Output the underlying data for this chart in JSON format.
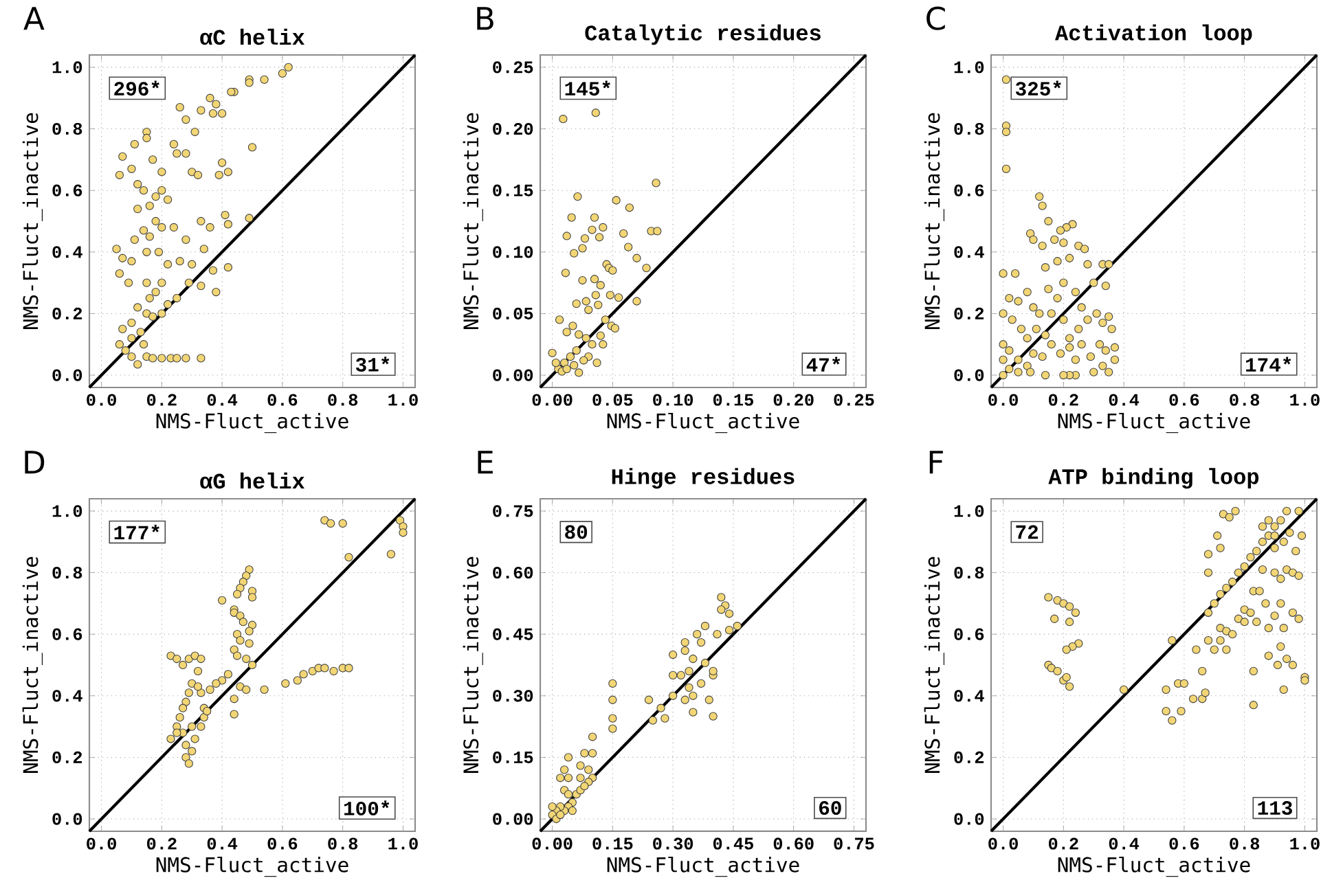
{
  "chart_data": [
    {
      "type": "scatter",
      "title": "αC helix",
      "xlabel": "NMS-Fluct_active",
      "ylabel": "NMS-Fluct_inactive",
      "annotations": [
        "A",
        "296*",
        "31*"
      ],
      "xlim": [
        -0.04,
        1.04
      ],
      "ylim": [
        -0.04,
        1.04
      ],
      "xticks": [
        {
          "value": 0,
          "label": "0.0"
        },
        {
          "value": 0.2,
          "label": "0.2"
        },
        {
          "value": 0.4,
          "label": "0.4"
        },
        {
          "value": 0.6,
          "label": "0.6"
        },
        {
          "value": 0.8,
          "label": "0.8"
        },
        {
          "value": 1.0,
          "label": "1.0"
        }
      ],
      "yticks": [
        {
          "value": 0,
          "label": "0.0"
        },
        {
          "value": 0.2,
          "label": "0.2"
        },
        {
          "value": 0.4,
          "label": "0.4"
        },
        {
          "value": 0.6,
          "label": "0.6"
        },
        {
          "value": 0.8,
          "label": "0.8"
        },
        {
          "value": 1.0,
          "label": "1.0"
        }
      ],
      "grid": true,
      "marker": "circle",
      "series": [
        {
          "color": "#f2d675",
          "x": [
            0.62,
            0.6,
            0.54,
            0.49,
            0.49,
            0.44,
            0.43,
            0.36,
            0.38,
            0.4,
            0.37,
            0.33,
            0.26,
            0.28,
            0.31,
            0.24,
            0.15,
            0.15,
            0.11,
            0.07,
            0.06,
            0.17,
            0.2,
            0.25,
            0.28,
            0.3,
            0.32,
            0.4,
            0.42,
            0.39,
            0.5,
            0.1,
            0.12,
            0.14,
            0.18,
            0.16,
            0.2,
            0.22,
            0.18,
            0.14,
            0.12,
            0.16,
            0.2,
            0.24,
            0.28,
            0.33,
            0.36,
            0.41,
            0.42,
            0.49,
            0.05,
            0.07,
            0.1,
            0.06,
            0.09,
            0.11,
            0.15,
            0.19,
            0.22,
            0.26,
            0.3,
            0.34,
            0.38,
            0.42,
            0.37,
            0.15,
            0.2,
            0.25,
            0.29,
            0.33,
            0.12,
            0.15,
            0.17,
            0.2,
            0.22,
            0.1,
            0.07,
            0.06,
            0.08,
            0.1,
            0.13,
            0.14,
            0.1,
            0.12,
            0.15,
            0.17,
            0.2,
            0.23,
            0.25,
            0.28,
            0.33,
            0.16,
            0.18
          ],
          "values": [
            1.0,
            0.98,
            0.96,
            0.96,
            0.95,
            0.92,
            0.92,
            0.9,
            0.88,
            0.85,
            0.85,
            0.86,
            0.87,
            0.83,
            0.79,
            0.75,
            0.79,
            0.77,
            0.75,
            0.71,
            0.65,
            0.7,
            0.66,
            0.72,
            0.72,
            0.66,
            0.65,
            0.69,
            0.66,
            0.65,
            0.74,
            0.67,
            0.62,
            0.6,
            0.58,
            0.55,
            0.6,
            0.57,
            0.5,
            0.47,
            0.54,
            0.45,
            0.48,
            0.48,
            0.44,
            0.5,
            0.48,
            0.52,
            0.49,
            0.51,
            0.41,
            0.38,
            0.37,
            0.33,
            0.3,
            0.44,
            0.4,
            0.4,
            0.36,
            0.37,
            0.36,
            0.41,
            0.27,
            0.35,
            0.34,
            0.3,
            0.3,
            0.25,
            0.3,
            0.29,
            0.22,
            0.2,
            0.19,
            0.2,
            0.23,
            0.17,
            0.15,
            0.1,
            0.08,
            0.12,
            0.14,
            0.1,
            0.06,
            0.035,
            0.06,
            0.055,
            0.055,
            0.055,
            0.055,
            0.055,
            0.055,
            0.25,
            0.27
          ]
        },
        {
          "type": "line",
          "color": "#000000",
          "marker": "none",
          "x": [
            -0.04,
            1.04
          ],
          "values": [
            -0.04,
            1.04
          ]
        }
      ]
    },
    {
      "type": "scatter",
      "title": "Catalytic residues",
      "xlabel": "NMS-Fluct_active",
      "ylabel": "NMS-Fluct_inactive",
      "annotations": [
        "B",
        "145*",
        "47*"
      ],
      "xlim": [
        -0.01,
        0.26
      ],
      "ylim": [
        -0.01,
        0.26
      ],
      "xticks": [
        {
          "value": 0,
          "label": "0.00"
        },
        {
          "value": 0.05,
          "label": "0.05"
        },
        {
          "value": 0.1,
          "label": "0.10"
        },
        {
          "value": 0.15,
          "label": "0.15"
        },
        {
          "value": 0.2,
          "label": "0.20"
        },
        {
          "value": 0.25,
          "label": "0.25"
        }
      ],
      "yticks": [
        {
          "value": 0,
          "label": "0.00"
        },
        {
          "value": 0.05,
          "label": "0.05"
        },
        {
          "value": 0.1,
          "label": "0.10"
        },
        {
          "value": 0.15,
          "label": "0.15"
        },
        {
          "value": 0.2,
          "label": "0.20"
        },
        {
          "value": 0.25,
          "label": "0.25"
        }
      ],
      "grid": true,
      "marker": "circle",
      "series": [
        {
          "color": "#f2d675",
          "x": [
            0.009,
            0.036,
            0.086,
            0.021,
            0.053,
            0.064,
            0.016,
            0.035,
            0.012,
            0.027,
            0.039,
            0.033,
            0.042,
            0.059,
            0.082,
            0.087,
            0.018,
            0.025,
            0.045,
            0.047,
            0.063,
            0.07,
            0.078,
            0.011,
            0.025,
            0.035,
            0.04,
            0.048,
            0.05,
            0.055,
            0.07,
            0.02,
            0.03,
            0.038,
            0.044,
            0.006,
            0.012,
            0.017,
            0.022,
            0.028,
            0.033,
            0.04,
            0.049,
            0.052,
            0.03,
            0.037,
            0.026,
            0.02,
            0.015,
            0.01,
            0.005,
            0.0,
            0.003,
            0.008,
            0.012,
            0.022,
            0.018,
            0.042,
            0.036,
            0.028
          ],
          "values": [
            0.208,
            0.213,
            0.156,
            0.145,
            0.142,
            0.136,
            0.128,
            0.128,
            0.113,
            0.111,
            0.112,
            0.118,
            0.12,
            0.115,
            0.117,
            0.117,
            0.099,
            0.103,
            0.09,
            0.087,
            0.104,
            0.095,
            0.087,
            0.083,
            0.077,
            0.078,
            0.073,
            0.065,
            0.085,
            0.063,
            0.06,
            0.058,
            0.053,
            0.057,
            0.045,
            0.045,
            0.035,
            0.04,
            0.033,
            0.03,
            0.025,
            0.032,
            0.04,
            0.038,
            0.015,
            0.01,
            0.012,
            0.02,
            0.015,
            0.01,
            0.005,
            0.018,
            0.01,
            0.003,
            0.005,
            0.002,
            0.008,
            0.025,
            0.065,
            0.06
          ]
        },
        {
          "type": "line",
          "color": "#000000",
          "marker": "none",
          "x": [
            -0.01,
            0.26
          ],
          "values": [
            -0.01,
            0.26
          ]
        }
      ]
    },
    {
      "type": "scatter",
      "title": "Activation loop",
      "xlabel": "NMS-Fluct_active",
      "ylabel": "NMS-Fluct_inactive",
      "annotations": [
        "C",
        "325*",
        "174*"
      ],
      "xlim": [
        -0.04,
        1.04
      ],
      "ylim": [
        -0.04,
        1.04
      ],
      "xticks": [
        {
          "value": 0,
          "label": "0.0"
        },
        {
          "value": 0.2,
          "label": "0.2"
        },
        {
          "value": 0.4,
          "label": "0.4"
        },
        {
          "value": 0.6,
          "label": "0.6"
        },
        {
          "value": 0.8,
          "label": "0.8"
        },
        {
          "value": 1.0,
          "label": "1.0"
        }
      ],
      "yticks": [
        {
          "value": 0,
          "label": "0.0"
        },
        {
          "value": 0.2,
          "label": "0.2"
        },
        {
          "value": 0.4,
          "label": "0.4"
        },
        {
          "value": 0.6,
          "label": "0.6"
        },
        {
          "value": 0.8,
          "label": "0.8"
        },
        {
          "value": 1.0,
          "label": "1.0"
        }
      ],
      "grid": true,
      "marker": "circle",
      "series": [
        {
          "color": "#f2d675",
          "x": [
            0.01,
            0.01,
            0.01,
            0.01,
            0.12,
            0.13,
            0.15,
            0.23,
            0.21,
            0.19,
            0.09,
            0.1,
            0.13,
            0.17,
            0.2,
            0.25,
            0.27,
            0.0,
            0.04,
            0.14,
            0.18,
            0.22,
            0.28,
            0.33,
            0.35,
            0.02,
            0.05,
            0.08,
            0.1,
            0.12,
            0.15,
            0.18,
            0.2,
            0.24,
            0.26,
            0.3,
            0.34,
            0.0,
            0.03,
            0.06,
            0.08,
            0.11,
            0.14,
            0.16,
            0.2,
            0.22,
            0.25,
            0.28,
            0.31,
            0.33,
            0.35,
            0.36,
            0.0,
            0.02,
            0.05,
            0.08,
            0.1,
            0.13,
            0.16,
            0.19,
            0.22,
            0.26,
            0.29,
            0.32,
            0.34,
            0.37,
            0.37,
            0.33,
            0.35,
            0.3,
            0.24,
            0.22,
            0.2,
            0.14,
            0.09,
            0.05,
            0.0,
            0.0,
            0.02,
            0.24
          ],
          "values": [
            0.96,
            0.81,
            0.79,
            0.67,
            0.58,
            0.55,
            0.5,
            0.49,
            0.48,
            0.47,
            0.46,
            0.44,
            0.42,
            0.44,
            0.43,
            0.42,
            0.41,
            0.33,
            0.33,
            0.35,
            0.37,
            0.38,
            0.36,
            0.36,
            0.36,
            0.25,
            0.24,
            0.27,
            0.22,
            0.2,
            0.28,
            0.25,
            0.3,
            0.27,
            0.22,
            0.3,
            0.29,
            0.2,
            0.18,
            0.15,
            0.12,
            0.15,
            0.13,
            0.2,
            0.18,
            0.12,
            0.15,
            0.18,
            0.2,
            0.17,
            0.19,
            0.15,
            0.1,
            0.08,
            0.05,
            0.03,
            0.07,
            0.06,
            0.1,
            0.07,
            0.09,
            0.1,
            0.06,
            0.1,
            0.08,
            0.09,
            0.05,
            0.03,
            0.01,
            0.01,
            0.0,
            0.0,
            0.0,
            0.0,
            0.01,
            0.01,
            0.0,
            0.05,
            0.02,
            0.05
          ]
        },
        {
          "type": "line",
          "color": "#000000",
          "marker": "none",
          "x": [
            -0.04,
            1.04
          ],
          "values": [
            -0.04,
            1.04
          ]
        }
      ]
    },
    {
      "type": "scatter",
      "title": "αG helix",
      "xlabel": "NMS-Fluct_active",
      "ylabel": "NMS-Fluct_inactive",
      "annotations": [
        "D",
        "177*",
        "100*"
      ],
      "xlim": [
        -0.04,
        1.04
      ],
      "ylim": [
        -0.04,
        1.04
      ],
      "xticks": [
        {
          "value": 0,
          "label": "0.0"
        },
        {
          "value": 0.2,
          "label": "0.2"
        },
        {
          "value": 0.4,
          "label": "0.4"
        },
        {
          "value": 0.6,
          "label": "0.6"
        },
        {
          "value": 0.8,
          "label": "0.8"
        },
        {
          "value": 1.0,
          "label": "1.0"
        }
      ],
      "yticks": [
        {
          "value": 0,
          "label": "0.0"
        },
        {
          "value": 0.2,
          "label": "0.2"
        },
        {
          "value": 0.4,
          "label": "0.4"
        },
        {
          "value": 0.6,
          "label": "0.6"
        },
        {
          "value": 0.8,
          "label": "0.8"
        },
        {
          "value": 1.0,
          "label": "1.0"
        }
      ],
      "grid": true,
      "marker": "circle",
      "series": [
        {
          "color": "#f2d675",
          "x": [
            0.74,
            0.76,
            0.8,
            0.99,
            1.0,
            1.0,
            0.96,
            0.82,
            0.49,
            0.48,
            0.47,
            0.46,
            0.45,
            0.5,
            0.5,
            0.4,
            0.44,
            0.44,
            0.46,
            0.47,
            0.5,
            0.49,
            0.45,
            0.46,
            0.49,
            0.44,
            0.45,
            0.48,
            0.42,
            0.4,
            0.38,
            0.36,
            0.44,
            0.44,
            0.46,
            0.48,
            0.5,
            0.54,
            0.61,
            0.65,
            0.67,
            0.7,
            0.72,
            0.74,
            0.77,
            0.8,
            0.82,
            0.23,
            0.25,
            0.27,
            0.29,
            0.31,
            0.33,
            0.32,
            0.3,
            0.29,
            0.28,
            0.27,
            0.26,
            0.25,
            0.23,
            0.27,
            0.28,
            0.28,
            0.29,
            0.3,
            0.31,
            0.33,
            0.34,
            0.34,
            0.33,
            0.35,
            0.3,
            0.32,
            0.25
          ],
          "values": [
            0.97,
            0.96,
            0.96,
            0.97,
            0.95,
            0.93,
            0.86,
            0.85,
            0.81,
            0.79,
            0.77,
            0.75,
            0.73,
            0.74,
            0.72,
            0.71,
            0.68,
            0.67,
            0.66,
            0.64,
            0.63,
            0.61,
            0.6,
            0.58,
            0.57,
            0.55,
            0.53,
            0.52,
            0.47,
            0.45,
            0.44,
            0.42,
            0.39,
            0.34,
            0.43,
            0.42,
            0.5,
            0.42,
            0.44,
            0.45,
            0.47,
            0.48,
            0.49,
            0.49,
            0.48,
            0.49,
            0.49,
            0.53,
            0.52,
            0.5,
            0.52,
            0.53,
            0.52,
            0.48,
            0.44,
            0.41,
            0.38,
            0.36,
            0.33,
            0.3,
            0.26,
            0.28,
            0.24,
            0.2,
            0.18,
            0.22,
            0.26,
            0.3,
            0.33,
            0.36,
            0.41,
            0.35,
            0.3,
            0.43,
            0.28
          ]
        },
        {
          "type": "line",
          "color": "#000000",
          "marker": "none",
          "x": [
            -0.04,
            1.04
          ],
          "values": [
            -0.04,
            1.04
          ]
        }
      ]
    },
    {
      "type": "scatter",
      "title": "Hinge residues",
      "xlabel": "NMS-Fluct_active",
      "ylabel": "NMS-Fluct_inactive",
      "annotations": [
        "E",
        "80",
        "60"
      ],
      "xlim": [
        -0.03,
        0.78
      ],
      "ylim": [
        -0.03,
        0.78
      ],
      "xticks": [
        {
          "value": 0,
          "label": "0.00"
        },
        {
          "value": 0.15,
          "label": "0.15"
        },
        {
          "value": 0.3,
          "label": "0.30"
        },
        {
          "value": 0.45,
          "label": "0.45"
        },
        {
          "value": 0.6,
          "label": "0.60"
        },
        {
          "value": 0.75,
          "label": "0.75"
        }
      ],
      "yticks": [
        {
          "value": 0,
          "label": "0.00"
        },
        {
          "value": 0.15,
          "label": "0.15"
        },
        {
          "value": 0.3,
          "label": "0.30"
        },
        {
          "value": 0.45,
          "label": "0.45"
        },
        {
          "value": 0.6,
          "label": "0.60"
        },
        {
          "value": 0.75,
          "label": "0.75"
        }
      ],
      "grid": true,
      "marker": "circle",
      "series": [
        {
          "color": "#f2d675",
          "x": [
            0.42,
            0.43,
            0.42,
            0.44,
            0.46,
            0.44,
            0.38,
            0.36,
            0.37,
            0.41,
            0.33,
            0.33,
            0.35,
            0.38,
            0.3,
            0.3,
            0.32,
            0.34,
            0.37,
            0.4,
            0.4,
            0.34,
            0.35,
            0.33,
            0.3,
            0.35,
            0.39,
            0.4,
            0.24,
            0.25,
            0.28,
            0.27,
            0.15,
            0.15,
            0.15,
            0.15,
            0.1,
            0.1,
            0.08,
            0.07,
            0.09,
            0.1,
            0.09,
            0.07,
            0.04,
            0.03,
            0.04,
            0.02,
            0.03,
            0.04,
            0.06,
            0.07,
            0.05,
            0.04,
            0.03,
            0.02,
            0.01,
            0.0,
            0.01,
            0.02,
            0.0,
            0.05,
            0.08
          ],
          "values": [
            0.54,
            0.52,
            0.51,
            0.5,
            0.47,
            0.46,
            0.47,
            0.45,
            0.43,
            0.45,
            0.43,
            0.41,
            0.39,
            0.38,
            0.4,
            0.35,
            0.35,
            0.36,
            0.33,
            0.35,
            0.36,
            0.32,
            0.3,
            0.29,
            0.3,
            0.26,
            0.29,
            0.25,
            0.29,
            0.24,
            0.245,
            0.27,
            0.33,
            0.29,
            0.245,
            0.22,
            0.2,
            0.16,
            0.16,
            0.13,
            0.12,
            0.1,
            0.09,
            0.1,
            0.15,
            0.12,
            0.1,
            0.1,
            0.07,
            0.06,
            0.06,
            0.07,
            0.04,
            0.03,
            0.02,
            0.03,
            0.02,
            0.01,
            0.0,
            0.01,
            0.03,
            0.02,
            0.08
          ]
        },
        {
          "type": "line",
          "color": "#000000",
          "marker": "none",
          "x": [
            -0.03,
            0.78
          ],
          "values": [
            -0.03,
            0.78
          ]
        }
      ]
    },
    {
      "type": "scatter",
      "title": "ATP binding loop",
      "xlabel": "NMS-Fluct_active",
      "ylabel": "NMS-Fluct_inactive",
      "annotations": [
        "F",
        "72",
        "113"
      ],
      "xlim": [
        -0.04,
        1.04
      ],
      "ylim": [
        -0.04,
        1.04
      ],
      "xticks": [
        {
          "value": 0,
          "label": "0.0"
        },
        {
          "value": 0.2,
          "label": "0.2"
        },
        {
          "value": 0.4,
          "label": "0.4"
        },
        {
          "value": 0.6,
          "label": "0.6"
        },
        {
          "value": 0.8,
          "label": "0.8"
        },
        {
          "value": 1.0,
          "label": "1.0"
        }
      ],
      "yticks": [
        {
          "value": 0,
          "label": "0.0"
        },
        {
          "value": 0.2,
          "label": "0.2"
        },
        {
          "value": 0.4,
          "label": "0.4"
        },
        {
          "value": 0.6,
          "label": "0.6"
        },
        {
          "value": 0.8,
          "label": "0.8"
        },
        {
          "value": 1.0,
          "label": "1.0"
        }
      ],
      "grid": true,
      "marker": "circle",
      "series": [
        {
          "color": "#f2d675",
          "x": [
            0.15,
            0.18,
            0.2,
            0.22,
            0.24,
            0.17,
            0.22,
            0.25,
            0.23,
            0.21,
            0.15,
            0.16,
            0.18,
            0.2,
            0.21,
            0.22,
            0.4,
            0.54,
            0.56,
            0.54,
            0.56,
            0.59,
            0.58,
            0.6,
            0.63,
            0.64,
            0.66,
            0.67,
            0.66,
            0.68,
            0.7,
            0.72,
            0.74,
            0.68,
            0.7,
            0.72,
            0.74,
            0.76,
            0.78,
            0.8,
            0.82,
            0.84,
            0.86,
            0.88,
            0.9,
            0.92,
            0.94,
            0.98,
            0.73,
            0.75,
            0.77,
            0.71,
            0.72,
            0.68,
            0.68,
            0.72,
            0.74,
            0.76,
            0.78,
            0.8,
            0.82,
            0.8,
            0.84,
            0.83,
            0.85,
            0.87,
            0.88,
            0.9,
            0.86,
            0.9,
            0.92,
            0.94,
            0.96,
            0.98,
            0.93,
            0.96,
            0.98,
            0.88,
            0.92,
            0.94,
            0.96,
            0.91,
            0.93,
            0.83,
            0.83,
            1.0,
            1.0,
            0.9,
            0.93,
            0.95,
            0.97,
            0.99,
            0.86,
            0.88,
            0.9,
            0.92
          ],
          "values": [
            0.72,
            0.71,
            0.7,
            0.69,
            0.67,
            0.65,
            0.64,
            0.57,
            0.56,
            0.55,
            0.5,
            0.49,
            0.48,
            0.45,
            0.46,
            0.43,
            0.42,
            0.42,
            0.58,
            0.35,
            0.32,
            0.35,
            0.44,
            0.44,
            0.39,
            0.55,
            0.39,
            0.41,
            0.48,
            0.58,
            0.55,
            0.58,
            0.55,
            0.67,
            0.7,
            0.73,
            0.75,
            0.77,
            0.8,
            0.82,
            0.85,
            0.87,
            0.9,
            0.92,
            0.95,
            0.97,
            1.0,
            1.0,
            0.99,
            0.98,
            1.0,
            0.92,
            0.88,
            0.86,
            0.8,
            0.62,
            0.61,
            0.6,
            0.65,
            0.68,
            0.67,
            0.64,
            0.64,
            0.74,
            0.74,
            0.7,
            0.62,
            0.66,
            0.81,
            0.8,
            0.78,
            0.81,
            0.8,
            0.79,
            0.62,
            0.67,
            0.65,
            0.53,
            0.56,
            0.52,
            0.5,
            0.5,
            0.42,
            0.48,
            0.37,
            0.46,
            0.45,
            0.88,
            0.9,
            0.93,
            0.87,
            0.92,
            0.95,
            0.97,
            0.92,
            0.7
          ]
        },
        {
          "type": "line",
          "color": "#000000",
          "marker": "none",
          "x": [
            -0.04,
            1.04
          ],
          "values": [
            -0.04,
            1.04
          ]
        }
      ]
    }
  ]
}
